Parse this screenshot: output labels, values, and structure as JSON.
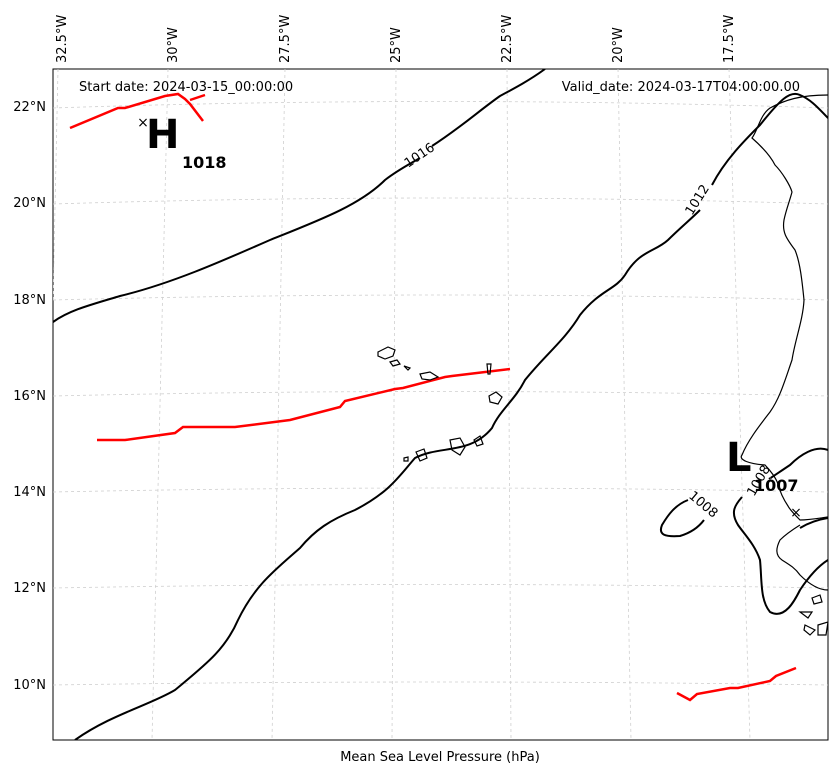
{
  "map": {
    "start_date": "Start date: 2024-03-15_00:00:00",
    "valid_date": "Valid_date: 2024-03-17T04:00:00.00",
    "caption": "Mean Sea Level Pressure (hPa)",
    "lon_labels": [
      "32.5°W",
      "30°W",
      "27.5°W",
      "25°W",
      "22.5°W",
      "20°W",
      "17.5°W"
    ],
    "lat_labels": [
      "22°N",
      "20°N",
      "18°N",
      "16°N",
      "14°N",
      "12°N",
      "10°N"
    ],
    "contour_labels": [
      "1016",
      "1012",
      "1008",
      "1008"
    ],
    "high": {
      "letter": "H",
      "value": "1018"
    },
    "low": {
      "letter": "L",
      "value": "1007"
    },
    "colors": {
      "isobar": "#000000",
      "front": "#ff0000",
      "grid": "#cfcfcf"
    }
  }
}
